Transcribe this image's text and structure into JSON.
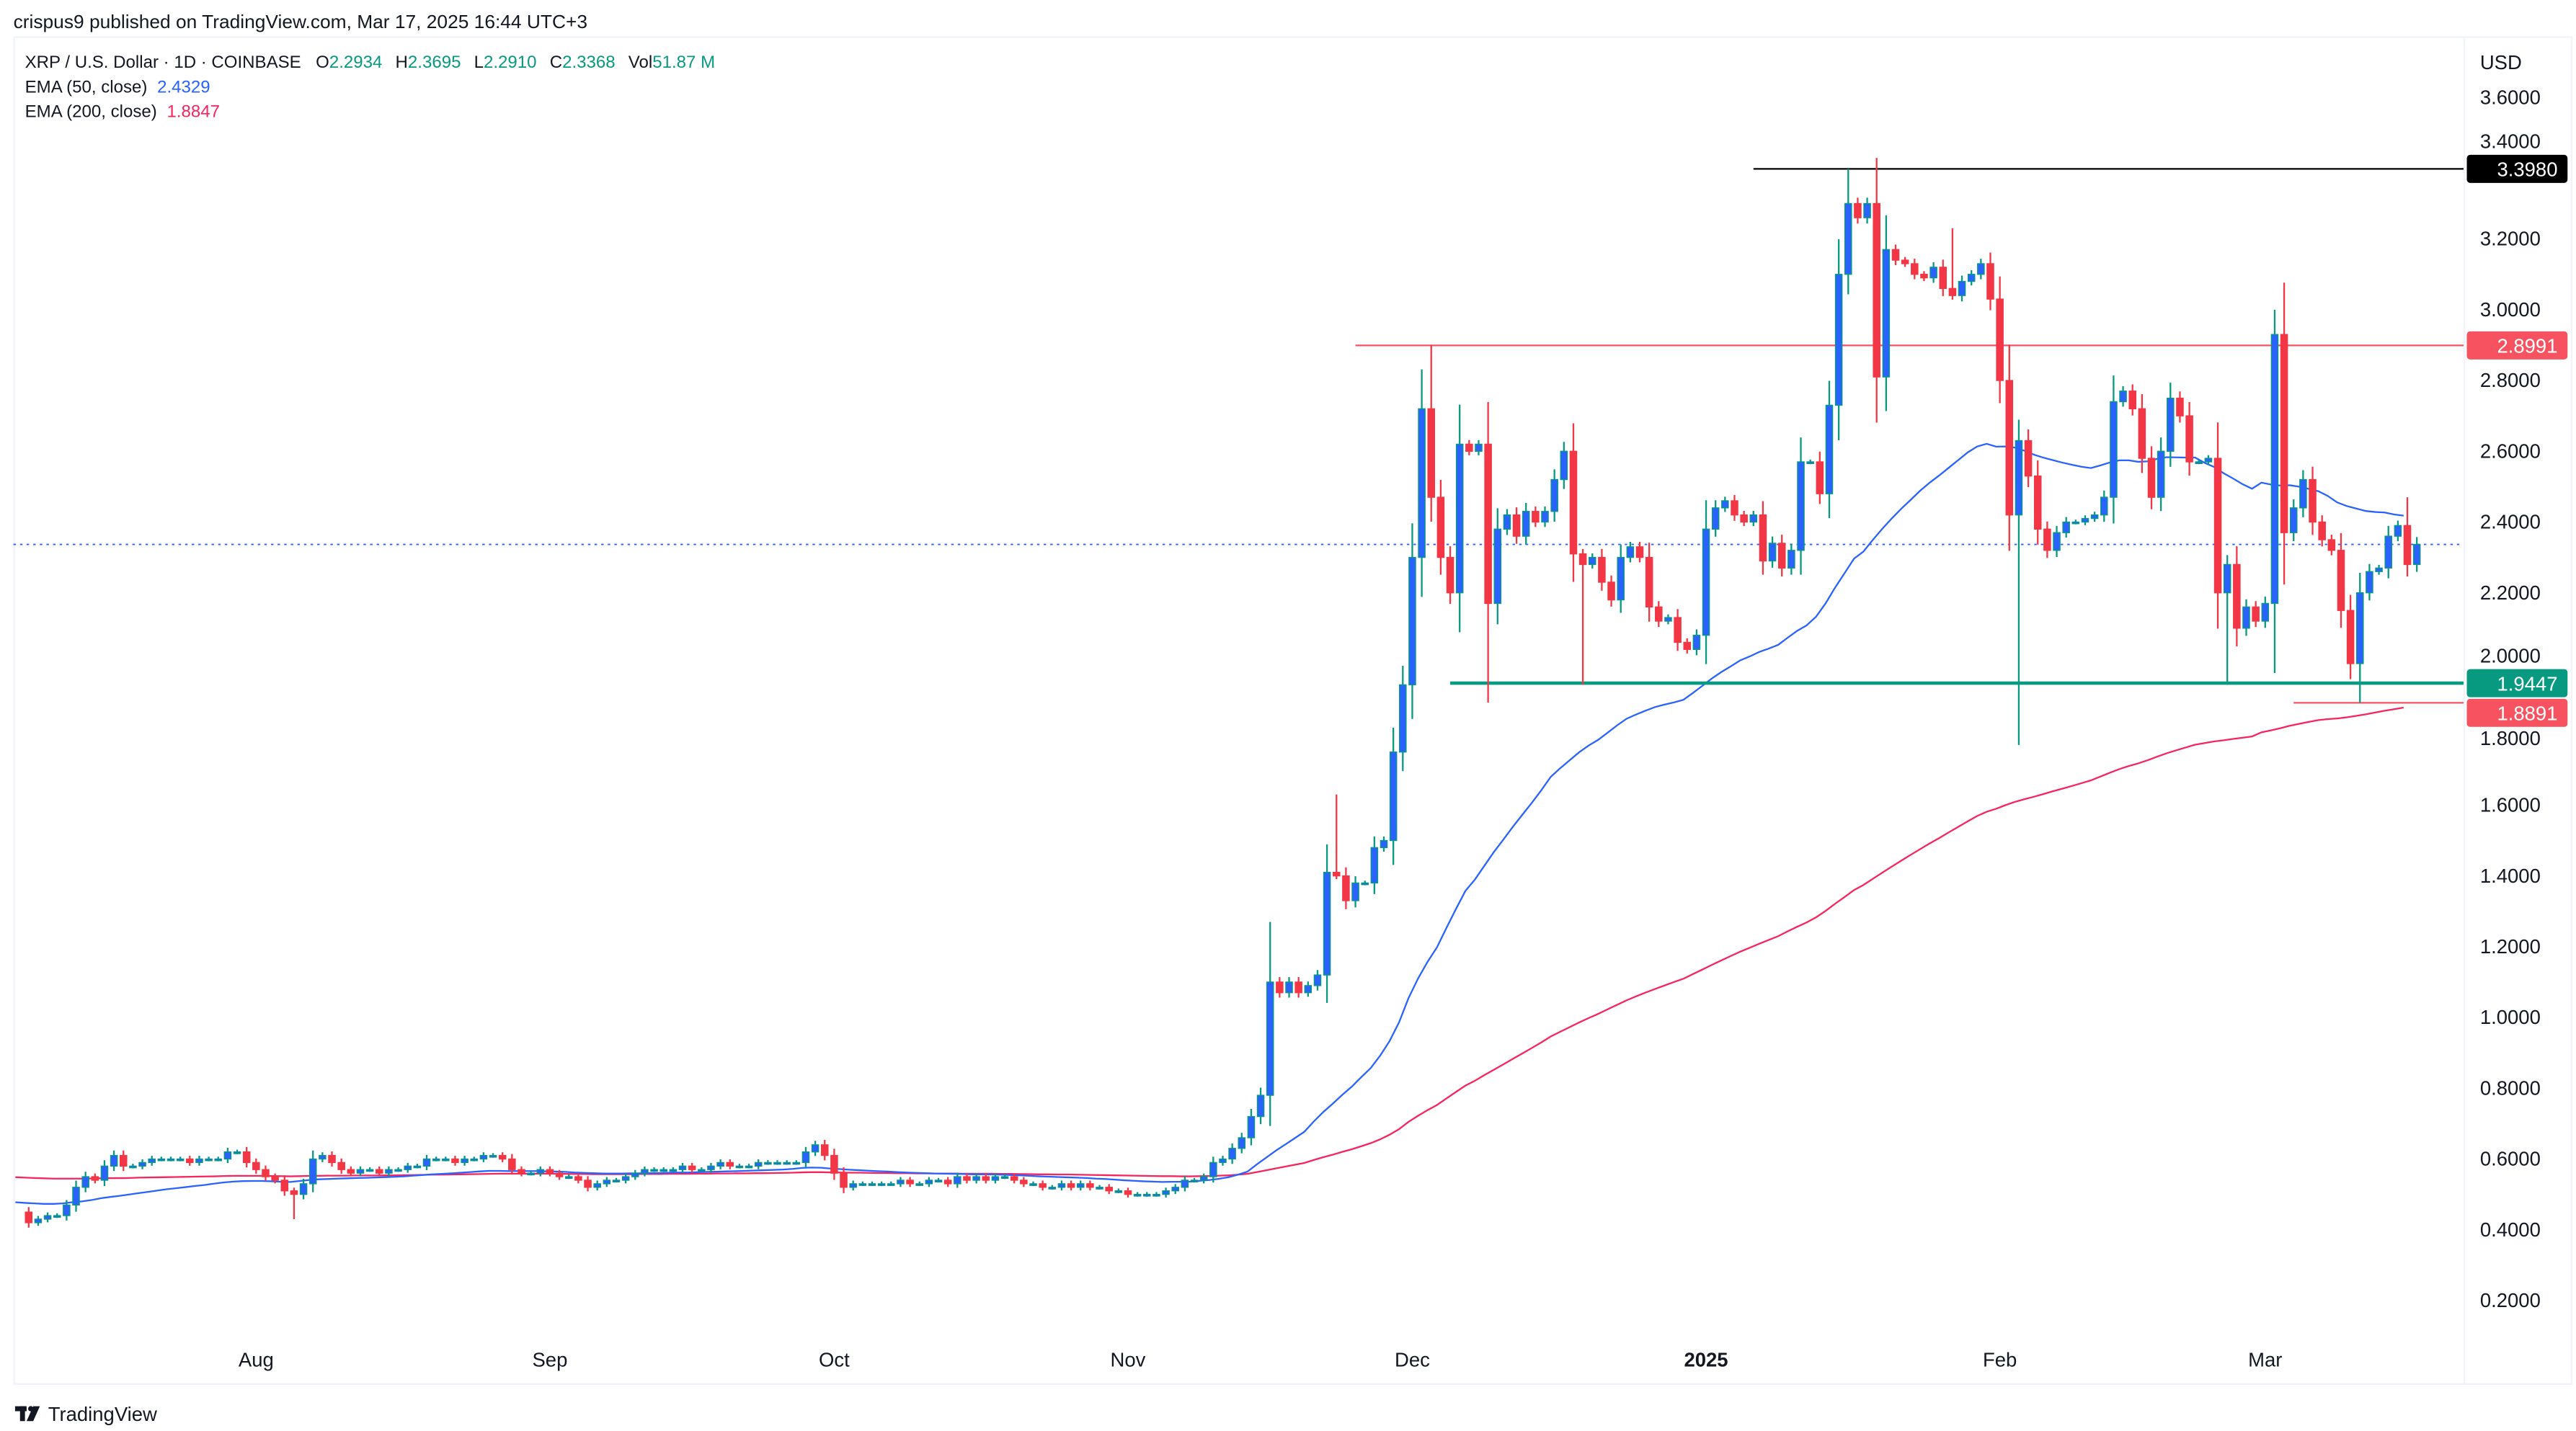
{
  "header": {
    "published": "crispus9 published on TradingView.com, Mar 17, 2025 16:44 UTC+3"
  },
  "legend": {
    "symbol": "XRP / U.S. Dollar · 1D · COINBASE",
    "o_label": "O",
    "o": "2.2934",
    "h_label": "H",
    "h": "2.3695",
    "l_label": "L",
    "l": "2.2910",
    "c_label": "C",
    "c": "2.3368",
    "vol_label": "Vol",
    "vol": "51.87 M",
    "ema50_label": "EMA (50, close)",
    "ema50_value": "2.4329",
    "ema200_label": "EMA (200, close)",
    "ema200_value": "1.8847"
  },
  "price_axis": {
    "currency": "USD",
    "ticks": [
      "3.6000",
      "3.4000",
      "3.2000",
      "3.0000",
      "2.8000",
      "2.6000",
      "2.4000",
      "2.2000",
      "2.0000",
      "1.8000",
      "1.6000",
      "1.4000",
      "1.2000",
      "1.0000",
      "0.8000",
      "0.6000",
      "0.4000",
      "0.2000"
    ]
  },
  "time_axis": {
    "labels": [
      {
        "text": "Aug",
        "date": "2024-08-01"
      },
      {
        "text": "Sep",
        "date": "2024-09-01"
      },
      {
        "text": "Oct",
        "date": "2024-10-01"
      },
      {
        "text": "Nov",
        "date": "2024-11-01"
      },
      {
        "text": "Dec",
        "date": "2024-12-01"
      },
      {
        "text": "2025",
        "date": "2025-01-01"
      },
      {
        "text": "Feb",
        "date": "2025-02-01"
      },
      {
        "text": "Mar",
        "date": "2025-03-01"
      }
    ]
  },
  "footer": {
    "logo_text": "TradingView"
  },
  "colors": {
    "up_body": "#2962ff",
    "up_wick": "#089981",
    "down": "#f23645",
    "ema50": "#2962ff",
    "ema200": "#f7245d",
    "resistance": "#f7525f",
    "support": "#089981",
    "ath": "#000000"
  },
  "chart_data": {
    "type": "candlestick",
    "title": "XRP / U.S. Dollar · 1D · COINBASE",
    "ylim": [
      0.1,
      3.75
    ],
    "y_scale": "linear",
    "grid": false,
    "first_date": "2024-07-08",
    "closes": [
      0.42,
      0.43,
      0.44,
      0.44,
      0.47,
      0.52,
      0.55,
      0.54,
      0.58,
      0.61,
      0.58,
      0.58,
      0.59,
      0.6,
      0.6,
      0.6,
      0.6,
      0.59,
      0.6,
      0.6,
      0.6,
      0.62,
      0.62,
      0.59,
      0.57,
      0.55,
      0.54,
      0.51,
      0.5,
      0.53,
      0.6,
      0.61,
      0.59,
      0.57,
      0.56,
      0.57,
      0.57,
      0.56,
      0.57,
      0.57,
      0.58,
      0.58,
      0.6,
      0.6,
      0.6,
      0.59,
      0.6,
      0.6,
      0.61,
      0.61,
      0.6,
      0.57,
      0.56,
      0.56,
      0.57,
      0.56,
      0.55,
      0.55,
      0.54,
      0.52,
      0.53,
      0.54,
      0.54,
      0.55,
      0.56,
      0.57,
      0.57,
      0.57,
      0.57,
      0.58,
      0.57,
      0.57,
      0.58,
      0.59,
      0.58,
      0.58,
      0.58,
      0.59,
      0.59,
      0.59,
      0.59,
      0.59,
      0.62,
      0.64,
      0.61,
      0.56,
      0.52,
      0.53,
      0.53,
      0.53,
      0.53,
      0.53,
      0.54,
      0.53,
      0.53,
      0.54,
      0.54,
      0.53,
      0.55,
      0.54,
      0.55,
      0.54,
      0.55,
      0.55,
      0.54,
      0.53,
      0.53,
      0.52,
      0.52,
      0.53,
      0.52,
      0.53,
      0.52,
      0.52,
      0.51,
      0.51,
      0.5,
      0.5,
      0.5,
      0.5,
      0.51,
      0.52,
      0.54,
      0.54,
      0.55,
      0.59,
      0.6,
      0.63,
      0.66,
      0.72,
      0.78,
      1.1,
      1.07,
      1.1,
      1.07,
      1.09,
      1.12,
      1.41,
      1.4,
      1.33,
      1.38,
      1.38,
      1.48,
      1.5,
      1.75,
      1.94,
      2.3,
      2.72,
      2.47,
      2.3,
      2.2,
      2.62,
      2.6,
      2.62,
      2.17,
      2.38,
      2.42,
      2.36,
      2.43,
      2.4,
      2.43,
      2.52,
      2.6,
      2.31,
      2.28,
      2.3,
      2.23,
      2.18,
      2.3,
      2.33,
      2.3,
      2.16,
      2.12,
      2.13,
      2.06,
      2.04,
      2.08,
      2.38,
      2.44,
      2.46,
      2.42,
      2.4,
      2.42,
      2.29,
      2.34,
      2.27,
      2.32,
      2.57,
      2.57,
      2.48,
      2.73,
      3.1,
      3.3,
      3.26,
      3.3,
      2.81,
      3.17,
      3.14,
      3.13,
      3.1,
      3.09,
      3.12,
      3.06,
      3.04,
      3.08,
      3.1,
      3.13,
      3.03,
      2.8,
      2.42,
      2.63,
      2.53,
      2.38,
      2.32,
      2.37,
      2.4,
      2.4,
      2.41,
      2.42,
      2.47,
      2.74,
      2.77,
      2.72,
      2.58,
      2.47,
      2.6,
      2.75,
      2.7,
      2.57,
      2.57,
      2.58,
      2.2,
      2.28,
      2.1,
      2.16,
      2.12,
      2.17,
      2.93,
      2.37,
      2.44,
      2.52,
      2.4,
      2.35,
      2.32,
      2.15,
      2.0,
      2.2,
      2.26,
      2.27,
      2.36,
      2.39,
      2.28,
      2.3368
    ],
    "notable_highs": {
      "2024-11-16": 1.27,
      "2024-11-23": 1.63,
      "2024-12-03": 2.9,
      "2025-01-16": 3.398,
      "2025-01-27": 3.23,
      "2025-03-02": 3.0,
      "2025-03-16": 2.47
    },
    "notable_lows": {
      "2024-08-05": 0.43,
      "2024-12-09": 1.89,
      "2024-12-19": 1.94,
      "2025-02-03": 1.77,
      "2025-02-25": 1.94,
      "2025-03-11": 1.8891
    },
    "horizontal_levels": [
      {
        "price": 3.398,
        "label": "3.3980",
        "from": "2025-01-06",
        "color": "ath"
      },
      {
        "price": 2.8991,
        "label": "2.8991",
        "from": "2024-11-25",
        "color": "resistance"
      },
      {
        "price": 1.9447,
        "label": "1.9447",
        "from": "2024-12-05",
        "color": "support"
      },
      {
        "price": 1.8891,
        "label": "1.8891",
        "from": "2025-03-04",
        "color": "resistance"
      }
    ],
    "last_price": 2.3368,
    "series": [
      {
        "name": "EMA (50, close)",
        "period": 50
      },
      {
        "name": "EMA (200, close)",
        "period": 200
      }
    ]
  }
}
